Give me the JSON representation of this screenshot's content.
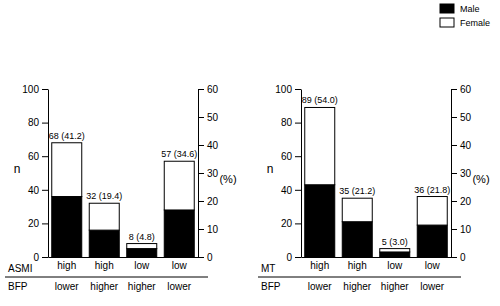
{
  "chart_data": [
    {
      "type": "bar",
      "stacked": true,
      "categories": [
        "high",
        "high",
        "low",
        "low"
      ],
      "xlabel": "ASMI",
      "categories_2": [
        "lower",
        "higher",
        "higher",
        "lower"
      ],
      "xlabel_2": "BFP",
      "ylabel": "n",
      "y2label": "(%)",
      "ylim": [
        0,
        100
      ],
      "yticks": [
        0,
        20,
        40,
        60,
        80,
        100
      ],
      "y2lim": [
        0,
        60
      ],
      "y2ticks": [
        0,
        10,
        20,
        30,
        40,
        50,
        60
      ],
      "series": [
        {
          "name": "Male",
          "color": "#000000",
          "values": [
            36,
            16,
            5,
            28
          ]
        },
        {
          "name": "Female",
          "color": "#ffffff",
          "values": [
            32,
            16,
            3,
            29
          ]
        }
      ],
      "annotations": [
        "68 (41.2)",
        "32 (19.4)",
        "8 (4.8)",
        "57 (34.6)"
      ]
    },
    {
      "type": "bar",
      "stacked": true,
      "categories": [
        "high",
        "high",
        "low",
        "low"
      ],
      "xlabel": "MT",
      "categories_2": [
        "lower",
        "higher",
        "higher",
        "lower"
      ],
      "xlabel_2": "BFP",
      "ylabel": "n",
      "y2label": "(%)",
      "ylim": [
        0,
        100
      ],
      "yticks": [
        0,
        20,
        40,
        60,
        80,
        100
      ],
      "y2lim": [
        0,
        60
      ],
      "y2ticks": [
        0,
        10,
        20,
        30,
        40,
        50,
        60
      ],
      "legend": "upper right",
      "series": [
        {
          "name": "Male",
          "color": "#000000",
          "values": [
            43,
            21,
            3,
            19
          ]
        },
        {
          "name": "Female",
          "color": "#ffffff",
          "values": [
            46,
            14,
            2,
            17
          ]
        }
      ],
      "annotations": [
        "89 (54.0)",
        "35 (21.2)",
        "5 (3.0)",
        "36 (21.8)"
      ]
    }
  ]
}
